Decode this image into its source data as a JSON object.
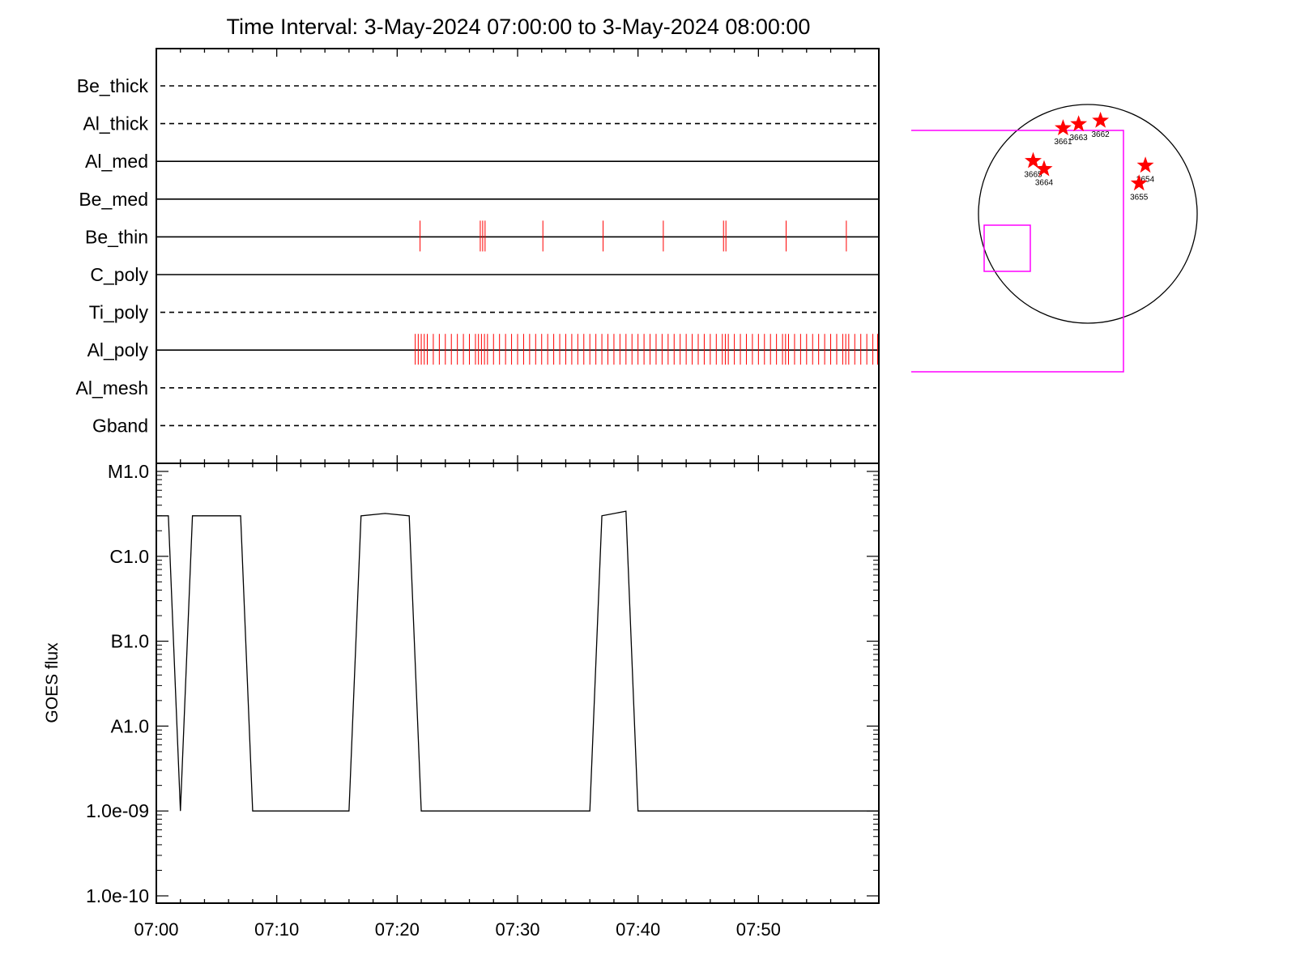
{
  "chart_data": [
    {
      "type": "timeline",
      "title": "Time Interval:  3-May-2024 07:00:00 to  3-May-2024 08:00:00",
      "rows": [
        {
          "label": "Be_thick",
          "style": "dashed",
          "events": []
        },
        {
          "label": "Al_thick",
          "style": "dashed",
          "events": []
        },
        {
          "label": "Al_med",
          "style": "solid",
          "events": []
        },
        {
          "label": "Be_med",
          "style": "solid",
          "events": []
        },
        {
          "label": "Be_thin",
          "style": "solid",
          "events": [
            21.9,
            26.9,
            27.1,
            27.3,
            32.1,
            37.1,
            42.1,
            47.1,
            47.3,
            52.3,
            57.3
          ]
        },
        {
          "label": "C_poly",
          "style": "solid",
          "events": []
        },
        {
          "label": "Ti_poly",
          "style": "dashed",
          "events": []
        },
        {
          "label": "Al_poly",
          "style": "solid",
          "events": [
            21.5,
            21.75,
            22.0,
            22.25,
            22.5,
            23.0,
            23.5,
            24.0,
            24.5,
            25.0,
            25.5,
            26.0,
            26.5,
            26.75,
            27.0,
            27.25,
            27.5,
            28.0,
            28.5,
            29.0,
            29.5,
            30.0,
            30.5,
            31.0,
            31.5,
            32.0,
            32.5,
            33.0,
            33.5,
            34.0,
            34.5,
            35.0,
            35.5,
            36.0,
            36.5,
            37.0,
            37.5,
            38.0,
            38.5,
            39.0,
            39.5,
            40.0,
            40.5,
            41.0,
            41.5,
            42.0,
            42.5,
            43.0,
            43.5,
            44.0,
            44.5,
            45.0,
            45.5,
            46.0,
            46.5,
            47.0,
            47.25,
            47.5,
            48.0,
            48.5,
            49.0,
            49.5,
            50.0,
            50.5,
            51.0,
            51.5,
            52.0,
            52.25,
            52.5,
            53.0,
            53.5,
            54.0,
            54.5,
            55.0,
            55.5,
            56.0,
            56.5,
            57.0,
            57.25,
            57.5,
            58.0,
            58.5,
            59.0,
            59.5,
            59.9
          ]
        },
        {
          "label": "Al_mesh",
          "style": "dashed",
          "events": []
        },
        {
          "label": "Gband",
          "style": "dashed",
          "events": []
        }
      ],
      "xlim_minutes": [
        0,
        60
      ]
    },
    {
      "type": "line",
      "ylabel": "GOES flux",
      "yscale": "log",
      "ytick_values": [
        1e-10,
        1e-09,
        1e-08,
        1e-07,
        1e-06,
        1e-05
      ],
      "ytick_labels": [
        "1.0e-10",
        "1.0e-09",
        "A1.0",
        "B1.0",
        "C1.0",
        "M1.0"
      ],
      "ylim": [
        1e-10,
        1e-05
      ],
      "xtick_labels": [
        "07:00",
        "07:10",
        "07:20",
        "07:30",
        "07:40",
        "07:50"
      ],
      "xtick_minutes": [
        0,
        10,
        20,
        30,
        40,
        50
      ],
      "xlim_minutes": [
        0,
        60
      ],
      "series": [
        {
          "x": [
            0,
            1,
            2,
            3,
            7,
            8,
            16,
            17,
            19,
            21,
            22,
            36,
            37,
            39,
            40,
            60
          ],
          "y": [
            3e-06,
            3e-06,
            1e-09,
            3e-06,
            3e-06,
            1e-09,
            1e-09,
            3e-06,
            3.2e-06,
            3e-06,
            1e-09,
            1e-09,
            3e-06,
            3.4e-06,
            1e-09,
            1e-09
          ]
        }
      ]
    },
    {
      "type": "scatter",
      "points": [
        {
          "label": "3661",
          "x": -215,
          "y": 745
        },
        {
          "label": "3663",
          "x": -80,
          "y": 780
        },
        {
          "label": "3662",
          "x": 110,
          "y": 810
        },
        {
          "label": "3665",
          "x": -475,
          "y": 460
        },
        {
          "label": "3664",
          "x": -380,
          "y": 390
        },
        {
          "label": "3654",
          "x": 500,
          "y": 420
        },
        {
          "label": "3655",
          "x": 445,
          "y": 265
        }
      ]
    }
  ],
  "colors": {
    "events": "#ff0000",
    "markers": "#ff0000",
    "fov": "#ff00ff",
    "line": "#000000"
  }
}
